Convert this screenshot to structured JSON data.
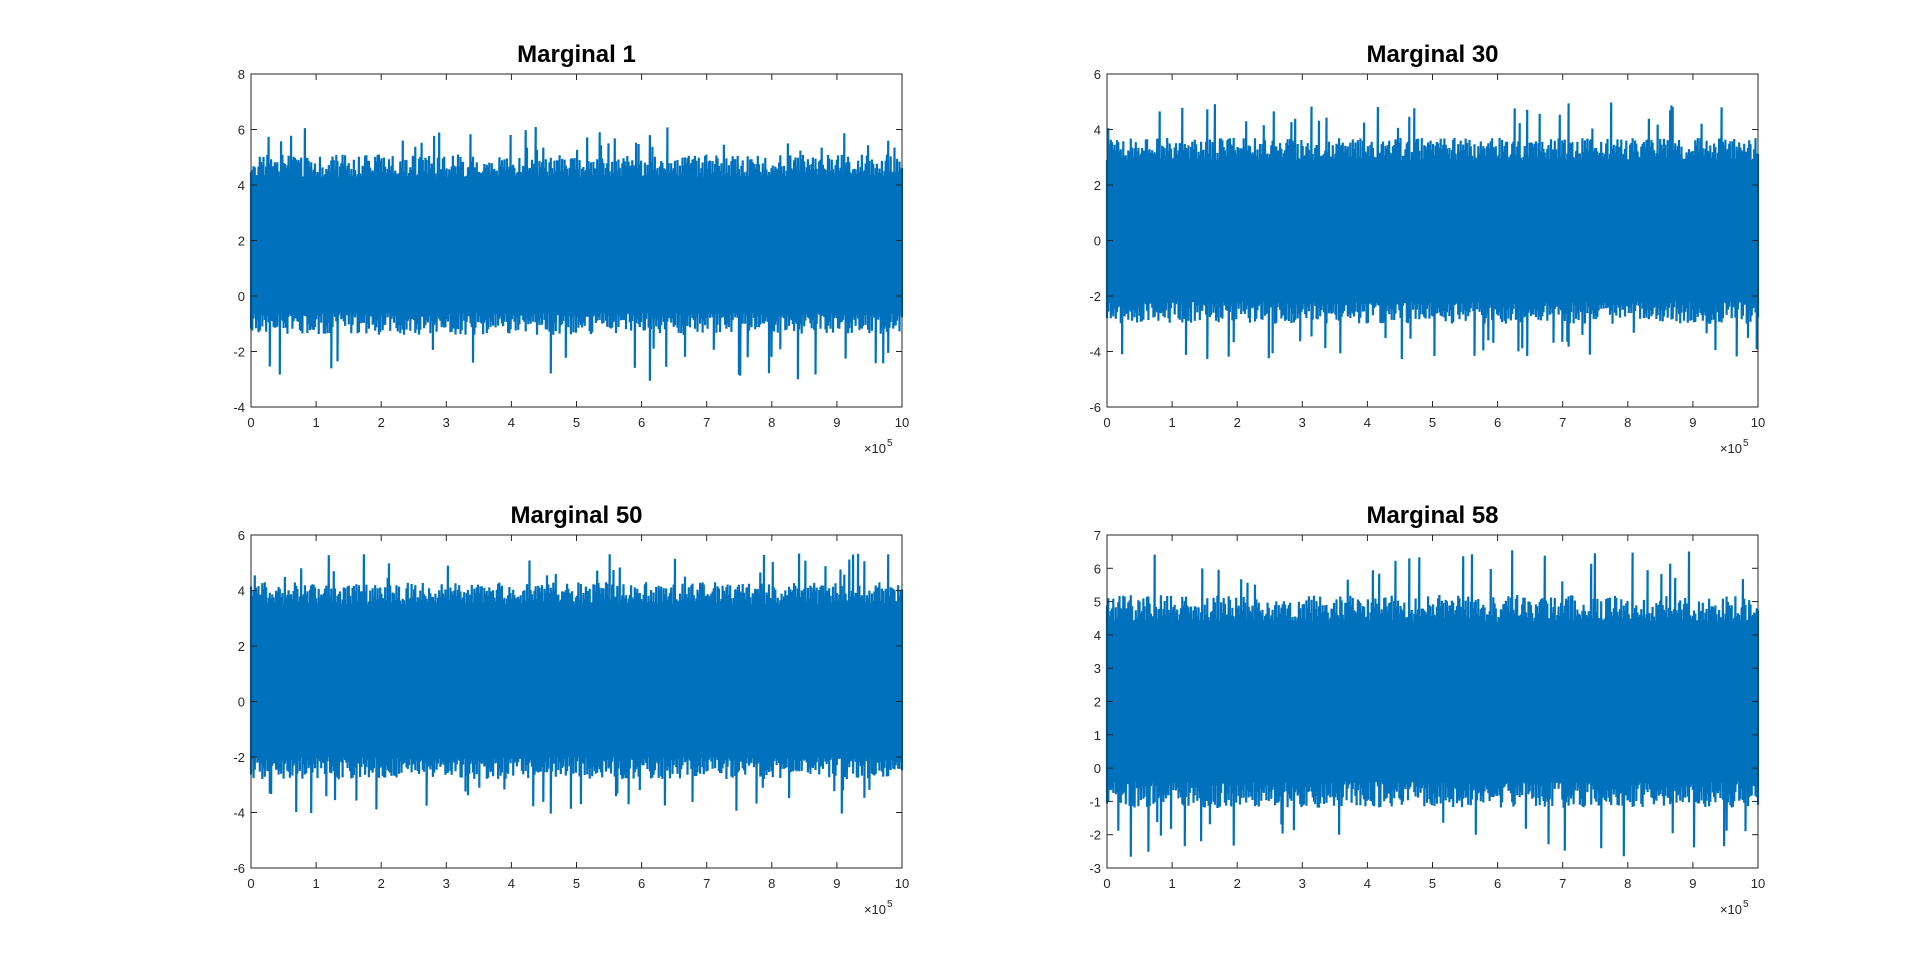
{
  "figure": {
    "background": "#ffffff",
    "series_color": "#0072bd"
  },
  "chart_data": [
    {
      "type": "line",
      "title": "Marginal 1",
      "xlabel": "",
      "ylabel": "",
      "xlim": [
        0,
        10
      ],
      "ylim": [
        -4,
        8
      ],
      "xticks": [
        0,
        1,
        2,
        3,
        4,
        5,
        6,
        7,
        8,
        9,
        10
      ],
      "yticks": [
        -4,
        -2,
        0,
        2,
        4,
        6,
        8
      ],
      "x_exponent_label": "×10",
      "x_exponent": "5",
      "band": {
        "q_low": -0.6,
        "q_high": 4.3,
        "min": -3.1,
        "max": 6.1
      },
      "grid": false
    },
    {
      "type": "line",
      "title": "Marginal 30",
      "xlabel": "",
      "ylabel": "",
      "xlim": [
        0,
        10
      ],
      "ylim": [
        -6,
        6
      ],
      "xticks": [
        0,
        1,
        2,
        3,
        4,
        5,
        6,
        7,
        8,
        9,
        10
      ],
      "yticks": [
        -6,
        -4,
        -2,
        0,
        2,
        4,
        6
      ],
      "x_exponent_label": "×10",
      "x_exponent": "5",
      "band": {
        "q_low": -2.2,
        "q_high": 2.9,
        "min": -4.3,
        "max": 5.1
      },
      "grid": false
    },
    {
      "type": "line",
      "title": "Marginal 50",
      "xlabel": "",
      "ylabel": "",
      "xlim": [
        0,
        10
      ],
      "ylim": [
        -6,
        6
      ],
      "xticks": [
        0,
        1,
        2,
        3,
        4,
        5,
        6,
        7,
        8,
        9,
        10
      ],
      "yticks": [
        -6,
        -4,
        -2,
        0,
        2,
        4,
        6
      ],
      "x_exponent_label": "×10",
      "x_exponent": "5",
      "band": {
        "q_low": -2.0,
        "q_high": 3.5,
        "min": -4.1,
        "max": 5.4
      },
      "grid": false
    },
    {
      "type": "line",
      "title": "Marginal 58",
      "xlabel": "",
      "ylabel": "",
      "xlim": [
        0,
        10
      ],
      "ylim": [
        -3,
        7
      ],
      "xticks": [
        0,
        1,
        2,
        3,
        4,
        5,
        6,
        7,
        8,
        9,
        10
      ],
      "yticks": [
        -3,
        -2,
        -1,
        0,
        1,
        2,
        3,
        4,
        5,
        6,
        7
      ],
      "x_exponent_label": "×10",
      "x_exponent": "5",
      "band": {
        "q_low": -0.4,
        "q_high": 4.4,
        "min": -2.7,
        "max": 6.6
      },
      "grid": false
    }
  ]
}
